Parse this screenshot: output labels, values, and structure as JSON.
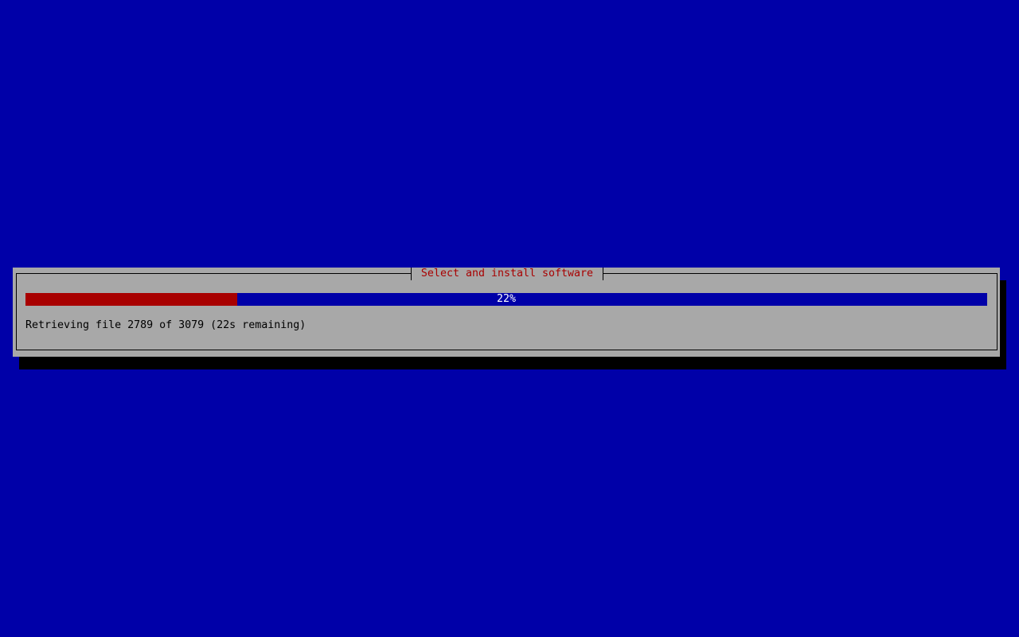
{
  "dialog": {
    "title": "Select and install software",
    "progress": {
      "percent": 22,
      "label": "22%"
    },
    "status": "Retrieving file 2789 of 3079 (22s remaining)"
  },
  "colors": {
    "background": "#0000a8",
    "dialog": "#a8a8a8",
    "progress_fill": "#a80000",
    "title": "#a80000"
  }
}
